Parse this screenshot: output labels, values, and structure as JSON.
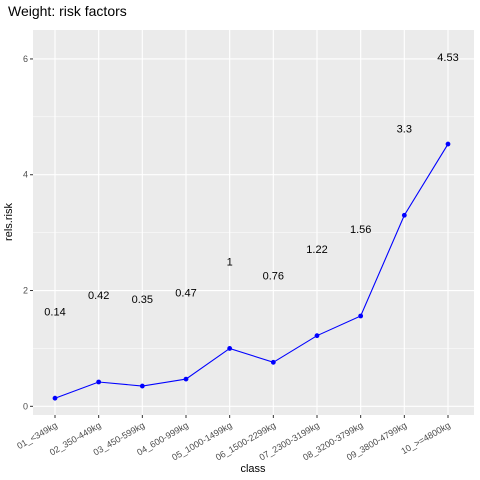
{
  "chart_data": {
    "type": "line",
    "title": "Weight: risk factors",
    "xlabel": "class",
    "ylabel": "rels.risk",
    "categories": [
      "01_<349kg",
      "02_350-449kg",
      "03_450-599kg",
      "04_600-999kg",
      "05_1000-1499kg",
      "06_1500-2299kg",
      "07_2300-3199kg",
      "08_3200-3799kg",
      "09_3800-4799kg",
      "10_>=4800kg"
    ],
    "values": [
      0.14,
      0.42,
      0.35,
      0.47,
      1,
      0.76,
      1.22,
      1.56,
      3.3,
      4.53
    ],
    "data_labels": [
      "0.14",
      "0.42",
      "0.35",
      "0.47",
      "1",
      "0.76",
      "1.22",
      "1.56",
      "3.3",
      "4.53"
    ],
    "ylim": [
      -0.15,
      6.5
    ],
    "yticks": [
      0,
      2,
      4,
      6
    ],
    "ytick_labels": [
      "0",
      "2",
      "4",
      "6"
    ],
    "line_color": "#0000ff",
    "panel_color": "#ebebeb",
    "grid": true,
    "legend": "none"
  }
}
